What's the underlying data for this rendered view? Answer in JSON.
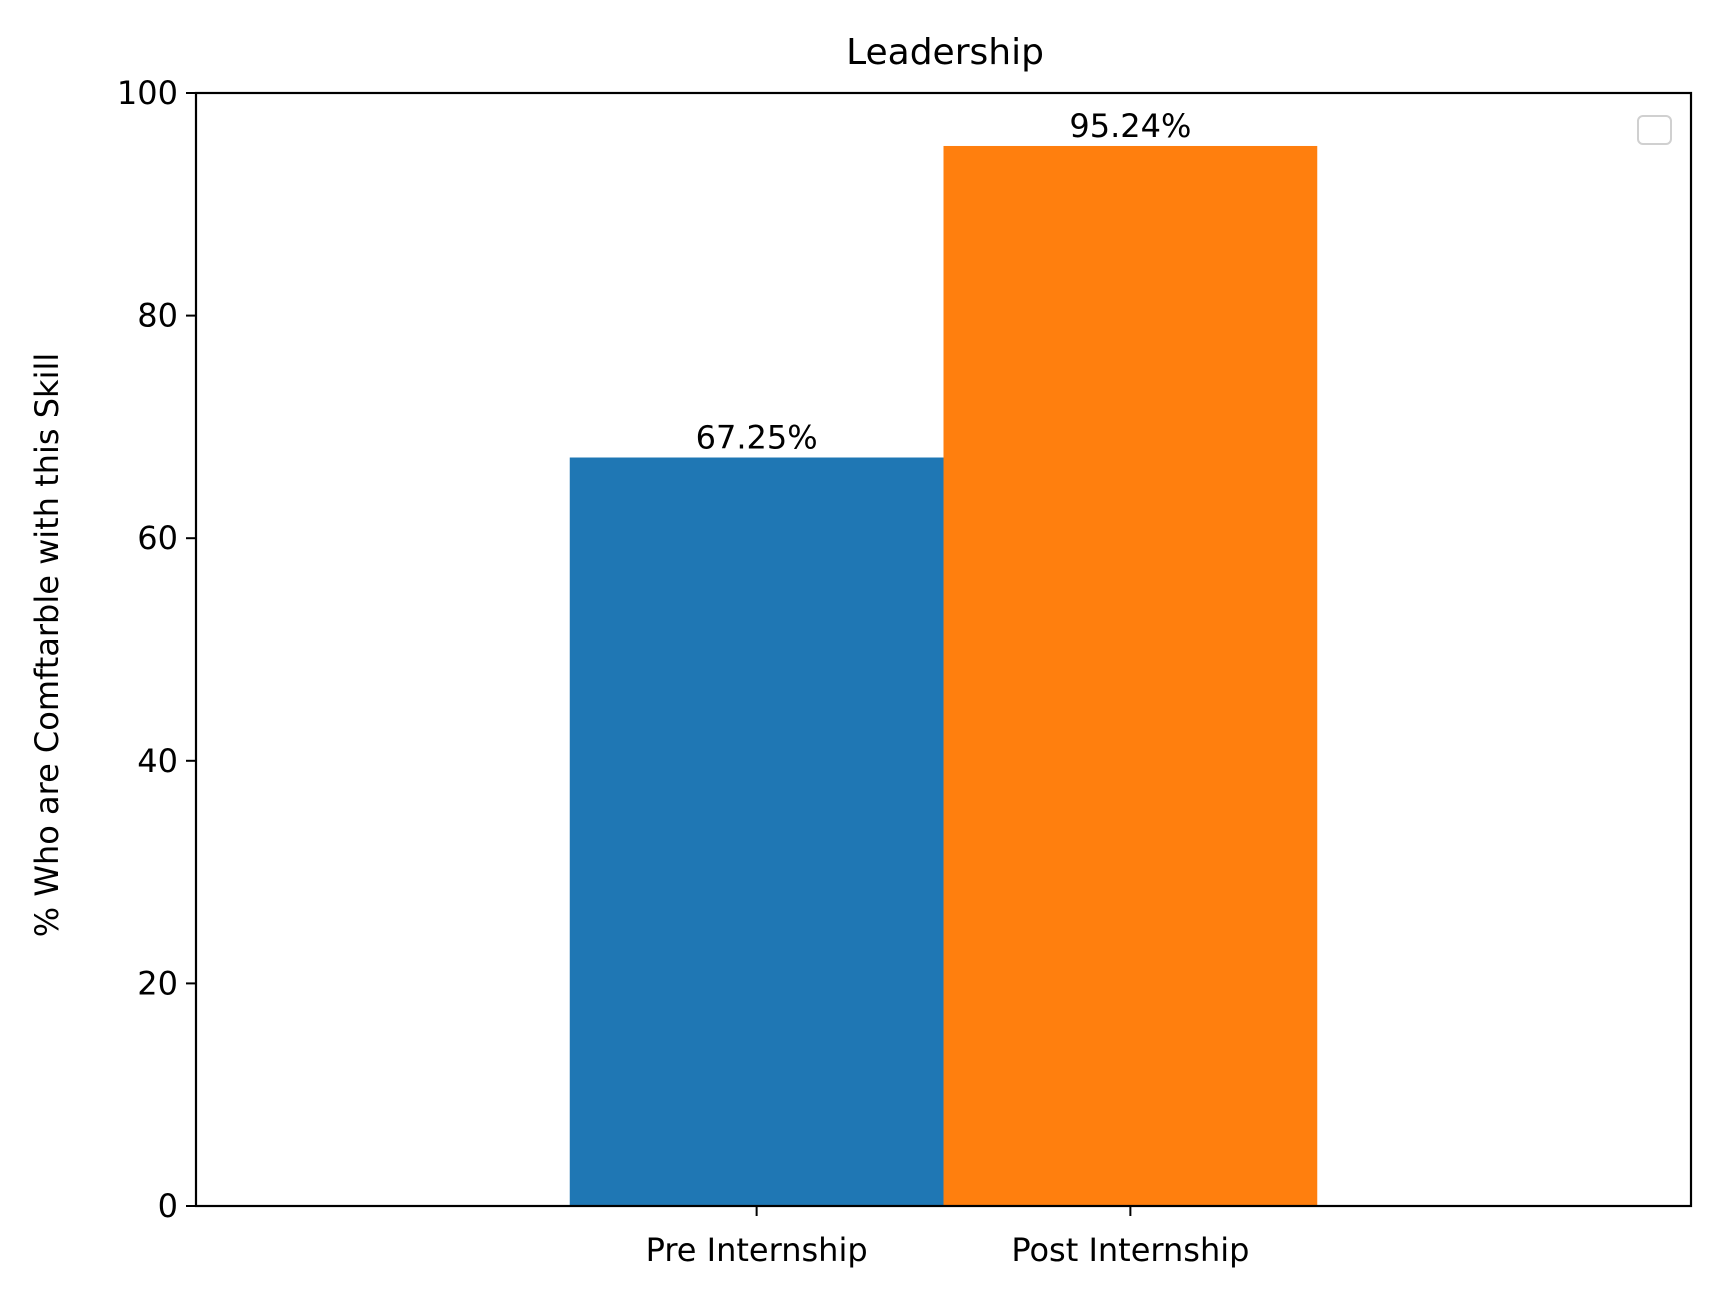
{
  "chart_data": {
    "type": "bar",
    "title": "Leadership",
    "xlabel": "",
    "ylabel": "% Who are Comftarble with this Skill",
    "categories": [
      "Pre Internship",
      "Post Internship"
    ],
    "values": [
      67.25,
      95.24
    ],
    "value_labels": [
      "67.25%",
      "95.24%"
    ],
    "colors": [
      "#1f77b4",
      "#ff7f0e"
    ],
    "ylim": [
      0,
      100
    ],
    "yticks": [
      0,
      20,
      40,
      60,
      80,
      100
    ],
    "ytick_labels": [
      "0",
      "20",
      "40",
      "60",
      "80",
      "100"
    ],
    "grid": false,
    "legend": {
      "placement": "top-right",
      "entries": []
    }
  }
}
